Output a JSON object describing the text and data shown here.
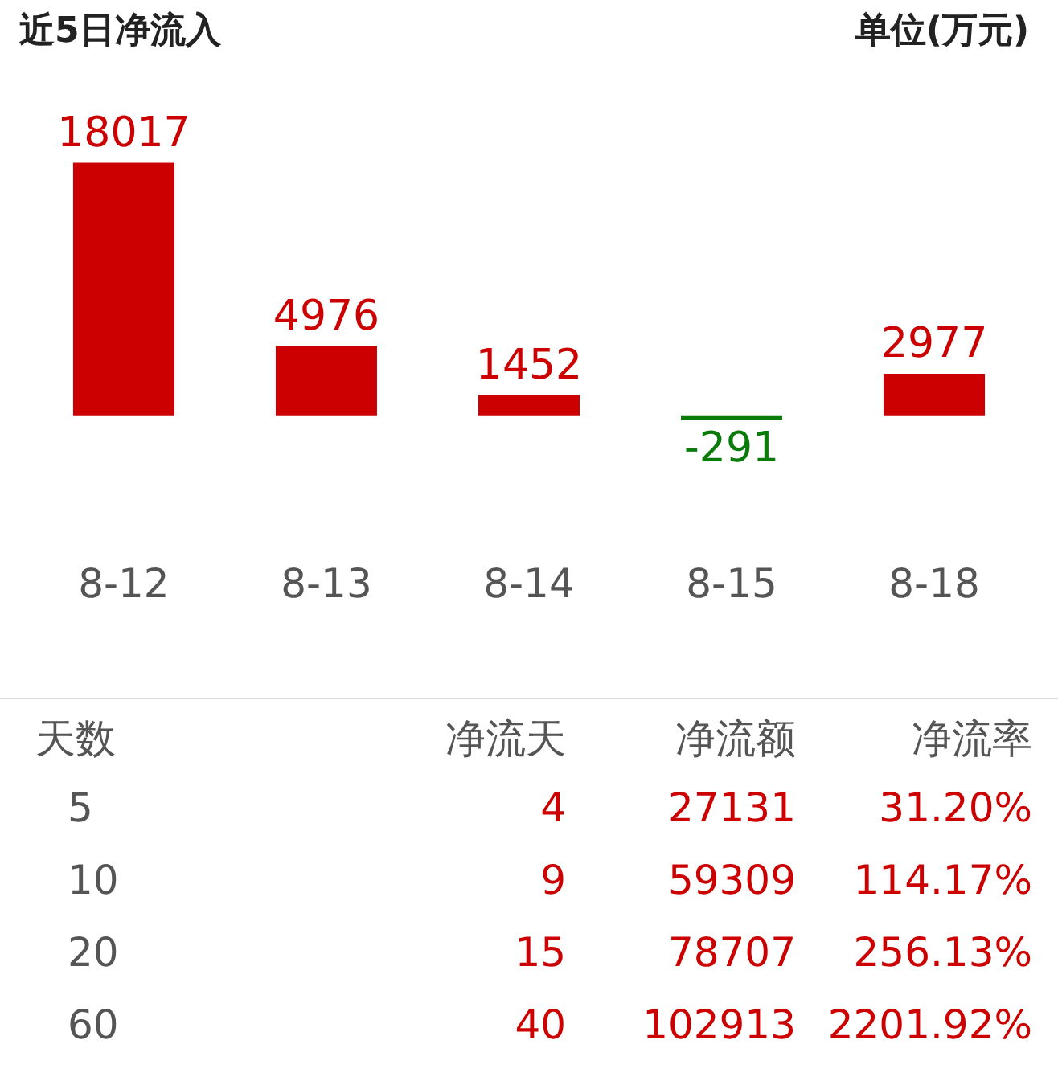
{
  "chart_data": [
    {
      "type": "bar",
      "title": "近5日净流入",
      "annotations": [
        "单位(万元)"
      ],
      "categories": [
        "8-12",
        "8-13",
        "8-14",
        "8-15",
        "8-18"
      ],
      "values": [
        18017,
        4976,
        1452,
        -291,
        2977
      ],
      "colors": [
        "#cc0000",
        "#cc0000",
        "#cc0000",
        "#0a7a0a",
        "#cc0000"
      ],
      "data_labels": true,
      "grid": false,
      "legend": false,
      "tick_labels": "x"
    },
    {
      "type": "other",
      "color": "#cc0000",
      "annotations": [
        "天数",
        "净流天",
        "净流额",
        "净流率",
        "5",
        "4",
        "27131",
        "31.20%",
        "10",
        "9",
        "59309",
        "114.17%",
        "20",
        "15",
        "78707",
        "256.13%",
        "60",
        "40",
        "102913",
        "2201.92%"
      ]
    }
  ]
}
